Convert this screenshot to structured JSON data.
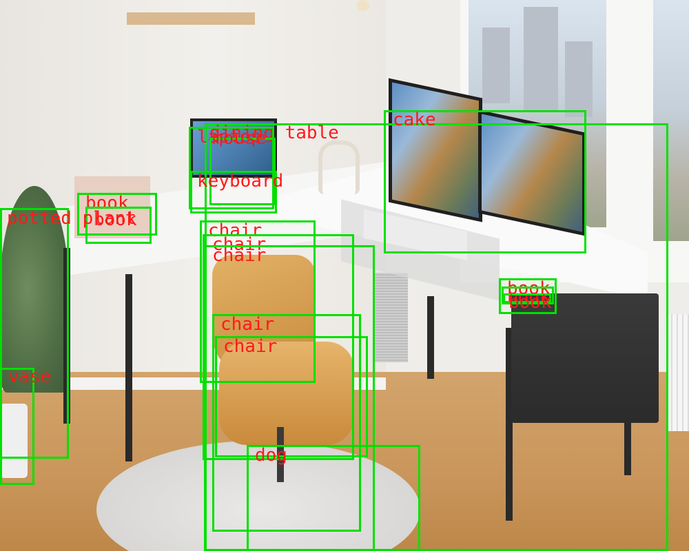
{
  "detections": [
    {
      "label": "dining table",
      "key": "dining-table"
    },
    {
      "label": "cake",
      "key": "cake"
    },
    {
      "label": "laptop",
      "key": "laptop"
    },
    {
      "label": "mouse",
      "key": "mouse"
    },
    {
      "label": "keyboard",
      "key": "keyboard"
    },
    {
      "label": "book",
      "key": "book-1"
    },
    {
      "label": "book",
      "key": "book-2"
    },
    {
      "label": "book",
      "key": "book-3"
    },
    {
      "label": "book",
      "key": "book-4"
    },
    {
      "label": "book",
      "key": "book-5"
    },
    {
      "label": "potted plant",
      "key": "potted-plant"
    },
    {
      "label": "vase",
      "key": "vase"
    },
    {
      "label": "chair",
      "key": "chair-1"
    },
    {
      "label": "chair",
      "key": "chair-2"
    },
    {
      "label": "chair",
      "key": "chair-3"
    },
    {
      "label": "chair",
      "key": "chair-4"
    },
    {
      "label": "chair",
      "key": "chair-5"
    },
    {
      "label": "dog",
      "key": "dog"
    }
  ],
  "colors": {
    "box": "#00e000",
    "label": "#ff1a1a"
  }
}
